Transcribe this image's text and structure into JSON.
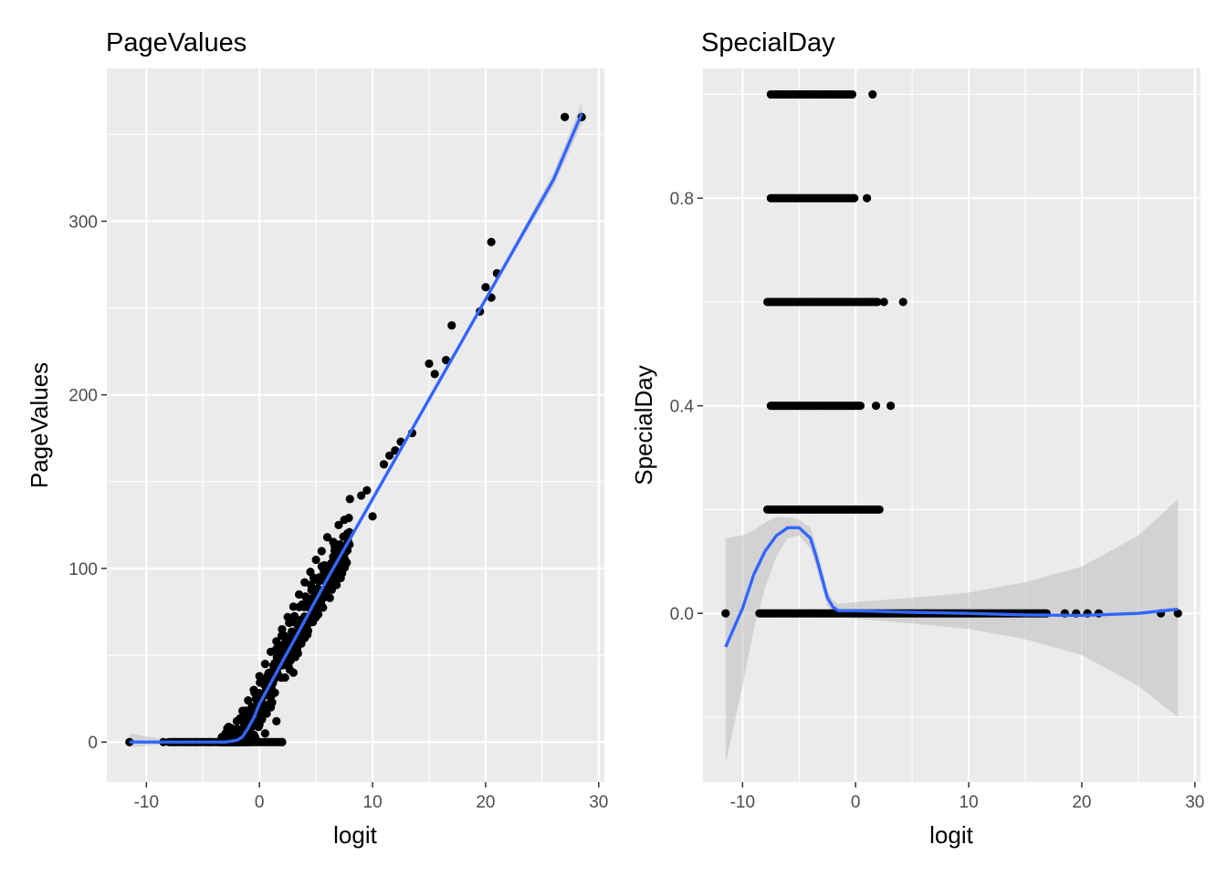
{
  "colors": {
    "panel": "#EBEBEB",
    "grid": "#FFFFFF",
    "points": "#000000",
    "smooth": "#3366FF",
    "ribbon": "#BDBDBD",
    "tick_text": "#4D4D4D"
  },
  "chart_data": [
    {
      "type": "scatter",
      "title": "PageValues",
      "xlabel": "logit",
      "ylabel": "PageValues",
      "xlim": [
        -13.5,
        30.5
      ],
      "ylim": [
        -23,
        388
      ],
      "xticks": [
        -10,
        0,
        10,
        20,
        30
      ],
      "yticks": [
        0,
        100,
        200,
        300
      ],
      "xtick_labels": [
        "-10",
        "0",
        "10",
        "20",
        "30"
      ],
      "ytick_labels": [
        "0",
        "100",
        "200",
        "300"
      ],
      "grid": true,
      "legend": "none",
      "points": [
        [
          -11.5,
          0
        ],
        [
          -8.5,
          0
        ],
        [
          -7.5,
          0
        ],
        [
          -6.5,
          0
        ],
        [
          -5.5,
          0
        ],
        [
          -4.5,
          0
        ],
        [
          -3.5,
          0
        ],
        [
          -3.0,
          5
        ],
        [
          -2.5,
          8
        ],
        [
          -2.0,
          12
        ],
        [
          -1.5,
          18
        ],
        [
          -1.0,
          24
        ],
        [
          -0.5,
          30
        ],
        [
          0.0,
          38
        ],
        [
          0.5,
          45
        ],
        [
          1.0,
          52
        ],
        [
          1.5,
          58
        ],
        [
          2.0,
          65
        ],
        [
          2.5,
          72
        ],
        [
          3.0,
          78
        ],
        [
          3.5,
          85
        ],
        [
          4.0,
          92
        ],
        [
          4.5,
          98
        ],
        [
          5.0,
          105
        ],
        [
          5.5,
          110
        ],
        [
          6.0,
          118
        ],
        [
          7.0,
          125
        ],
        [
          7.5,
          128
        ],
        [
          8.0,
          140
        ],
        [
          9.0,
          142
        ],
        [
          9.5,
          145
        ],
        [
          10.0,
          130
        ],
        [
          11.0,
          160
        ],
        [
          11.5,
          165
        ],
        [
          12.0,
          168
        ],
        [
          12.5,
          173
        ],
        [
          13.5,
          178
        ],
        [
          15.0,
          218
        ],
        [
          15.5,
          212
        ],
        [
          16.5,
          220
        ],
        [
          17.0,
          240
        ],
        [
          20.5,
          288
        ],
        [
          21.0,
          270
        ],
        [
          20.0,
          262
        ],
        [
          19.5,
          248
        ],
        [
          20.5,
          256
        ],
        [
          27.0,
          360
        ],
        [
          28.5,
          360
        ],
        [
          0.5,
          5
        ],
        [
          1.5,
          12
        ],
        [
          2.0,
          0
        ],
        [
          1.0,
          20
        ],
        [
          0.0,
          10
        ],
        [
          3.0,
          40
        ],
        [
          4.0,
          60
        ],
        [
          5.0,
          80
        ]
      ],
      "series": [
        {
          "type": "smooth",
          "x": [
            -11.5,
            -8,
            -5,
            -3,
            -2,
            -1.5,
            -1,
            -0.5,
            0,
            0.5,
            1,
            2,
            4,
            6,
            8,
            10,
            12,
            14,
            16,
            18,
            20,
            22,
            24,
            26,
            28.5
          ],
          "y": [
            0,
            0,
            0,
            0,
            1,
            3,
            8,
            14,
            22,
            28,
            34,
            46,
            70,
            94,
            117,
            140,
            163,
            186,
            209,
            232,
            255,
            278,
            301,
            324,
            362
          ],
          "lower": [
            -3,
            -1,
            -1,
            -1,
            0,
            2,
            7,
            13,
            21,
            27,
            33,
            45,
            69,
            93,
            116,
            139,
            162,
            185,
            208,
            231,
            254,
            276,
            298,
            320,
            356
          ],
          "upper": [
            5,
            1,
            1,
            1,
            2,
            4,
            9,
            15,
            23,
            29,
            35,
            47,
            71,
            95,
            118,
            141,
            164,
            187,
            210,
            233,
            256,
            280,
            304,
            328,
            368
          ]
        }
      ]
    },
    {
      "type": "scatter",
      "title": "SpecialDay",
      "xlabel": "logit",
      "ylabel": "SpecialDay",
      "xlim": [
        -13.5,
        30.5
      ],
      "ylim": [
        -0.325,
        1.05
      ],
      "xticks": [
        -10,
        0,
        10,
        20,
        30
      ],
      "yticks": [
        0.0,
        0.4,
        0.8
      ],
      "xtick_labels": [
        "-10",
        "0",
        "10",
        "20",
        "30"
      ],
      "ytick_labels": [
        "0.0",
        "0.4",
        "0.8"
      ],
      "grid": true,
      "legend": "none",
      "point_bands": [
        {
          "y": 1.0,
          "x_from": -7.5,
          "x_to": -0.2,
          "extra_x": [
            1.5
          ]
        },
        {
          "y": 0.8,
          "x_from": -7.5,
          "x_to": 0.0,
          "extra_x": [
            1.0
          ]
        },
        {
          "y": 0.6,
          "x_from": -7.8,
          "x_to": 2.0,
          "extra_x": [
            2.5,
            4.2
          ]
        },
        {
          "y": 0.4,
          "x_from": -7.5,
          "x_to": 0.5,
          "extra_x": [
            1.8,
            3.1
          ]
        },
        {
          "y": 0.2,
          "x_from": -7.8,
          "x_to": 2.2,
          "extra_x": []
        },
        {
          "y": 0.0,
          "x_from": -8.5,
          "x_to": 17.0,
          "extra_x": [
            -11.5,
            18.5,
            19.5,
            20.5,
            21.5,
            27.0,
            28.5
          ]
        }
      ],
      "series": [
        {
          "type": "smooth",
          "x": [
            -11.5,
            -10,
            -9,
            -8,
            -7,
            -6,
            -5,
            -4,
            -3.5,
            -3,
            -2.5,
            -2,
            -1.5,
            0,
            5,
            10,
            15,
            20,
            25,
            28.5
          ],
          "y": [
            -0.065,
            0.01,
            0.075,
            0.12,
            0.15,
            0.165,
            0.165,
            0.145,
            0.11,
            0.07,
            0.03,
            0.012,
            0.005,
            0.005,
            0.002,
            0.0,
            -0.003,
            -0.004,
            0.0,
            0.008
          ],
          "lower": [
            -0.29,
            -0.14,
            -0.03,
            0.05,
            0.11,
            0.145,
            0.15,
            0.125,
            0.09,
            0.05,
            0.015,
            0.0,
            -0.005,
            -0.01,
            -0.02,
            -0.03,
            -0.05,
            -0.08,
            -0.14,
            -0.2
          ],
          "upper": [
            0.145,
            0.15,
            0.16,
            0.175,
            0.185,
            0.185,
            0.18,
            0.165,
            0.13,
            0.09,
            0.045,
            0.025,
            0.018,
            0.022,
            0.03,
            0.04,
            0.06,
            0.09,
            0.15,
            0.22
          ]
        }
      ]
    }
  ]
}
